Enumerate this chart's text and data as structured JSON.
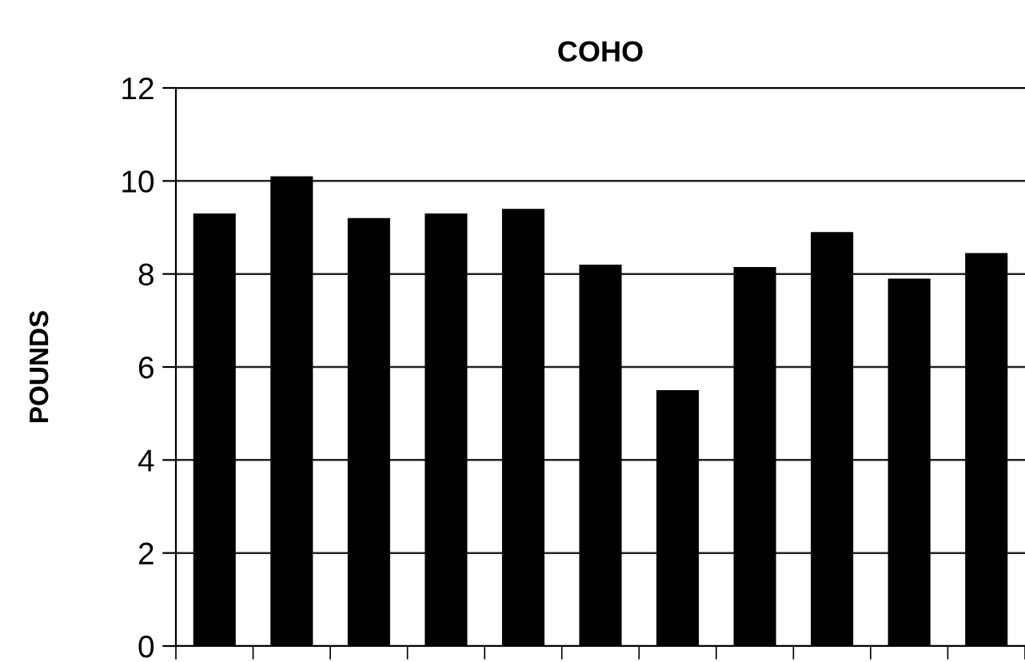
{
  "chart_data": {
    "type": "bar",
    "title": "COHO",
    "ylabel": "POUNDS",
    "categories": [
      null,
      null,
      null,
      null,
      null,
      null,
      null,
      null,
      null,
      null,
      null
    ],
    "values": [
      9.3,
      10.1,
      9.2,
      9.3,
      9.4,
      8.2,
      5.5,
      8.15,
      8.9,
      7.9,
      8.45
    ],
    "color": "#000000",
    "ylim": [
      0,
      12
    ],
    "yticks": [
      0,
      2,
      4,
      6,
      8,
      10,
      12
    ],
    "grid": "y"
  }
}
